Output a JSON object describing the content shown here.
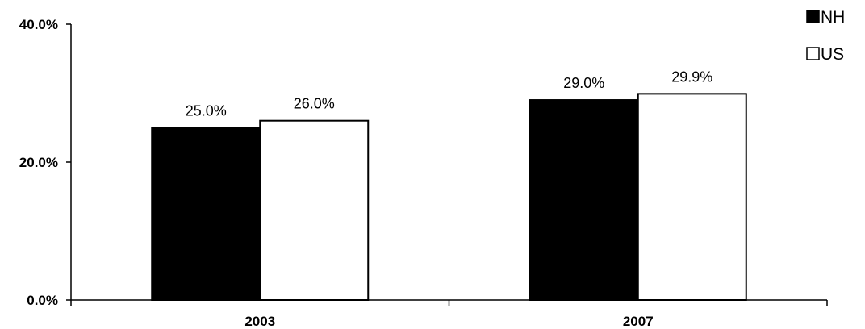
{
  "chart_data": {
    "type": "bar",
    "categories": [
      "2003",
      "2007"
    ],
    "series": [
      {
        "name": "NH",
        "values": [
          25.0,
          29.0
        ],
        "value_labels": [
          "25.0%",
          "29.0%"
        ],
        "fill": "#000000"
      },
      {
        "name": "US",
        "values": [
          26.0,
          29.9
        ],
        "value_labels": [
          "26.0%",
          "29.9%"
        ],
        "fill": "#ffffff"
      }
    ],
    "ylim": [
      0,
      40
    ],
    "yticks": [
      0,
      20,
      40
    ],
    "ytick_labels": [
      "0.0%",
      "20.0%",
      "40.0%"
    ],
    "title": "",
    "xlabel": "",
    "ylabel": "",
    "grid": false,
    "legend": "top-right",
    "colors": {
      "axis": "#000000",
      "bar_stroke": "#000000"
    }
  }
}
